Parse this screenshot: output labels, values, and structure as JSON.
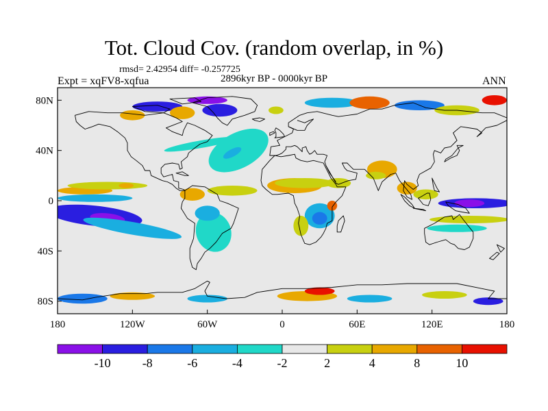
{
  "header": {
    "title": "Tot. Cloud Cov. (random overlap, in %)",
    "stats": "rmsd= 2.42954 diff= -0.257725",
    "expt": "Expt = xqFV8-xqfua",
    "period": "2896kyr BP - 0000kyr BP",
    "season": "ANN"
  },
  "map": {
    "projection": "cylindrical-equidistant",
    "lon_range": [
      -180,
      180
    ],
    "lat_range": [
      -90,
      90
    ],
    "x_ticks": [
      {
        "lon": -180,
        "label": "180"
      },
      {
        "lon": -120,
        "label": "120W"
      },
      {
        "lon": -60,
        "label": "60W"
      },
      {
        "lon": 0,
        "label": "0"
      },
      {
        "lon": 60,
        "label": "60E"
      },
      {
        "lon": 120,
        "label": "120E"
      },
      {
        "lon": 180,
        "label": "180"
      }
    ],
    "y_ticks": [
      {
        "lat": 80,
        "label": "80N"
      },
      {
        "lat": 40,
        "label": "40N"
      },
      {
        "lat": 0,
        "label": "0"
      },
      {
        "lat": -40,
        "label": "40S"
      },
      {
        "lat": -80,
        "label": "80S"
      }
    ],
    "background_color": "#e8e8e8",
    "coastline_color": "#000000"
  },
  "colorbar": {
    "labels": [
      "-10",
      "-8",
      "-6",
      "-4",
      "-2",
      "2",
      "4",
      "8",
      "10"
    ],
    "colors": [
      "#8a10e8",
      "#2a1ee0",
      "#1a78e8",
      "#1aaee0",
      "#20d8c8",
      "#e8e8e8",
      "#c8d010",
      "#e8a800",
      "#e86200",
      "#e81000"
    ]
  },
  "anomalies": [
    {
      "lon": -150,
      "lat": -12,
      "rx": 38,
      "ry": 8,
      "bin": 1,
      "rot": 6
    },
    {
      "lon": -140,
      "lat": -14,
      "rx": 14,
      "ry": 4,
      "bin": 0,
      "rot": 6
    },
    {
      "lon": -120,
      "lat": -22,
      "rx": 40,
      "ry": 5,
      "bin": 3,
      "rot": 10
    },
    {
      "lon": -150,
      "lat": 2,
      "rx": 30,
      "ry": 3,
      "bin": 3,
      "rot": 0
    },
    {
      "lon": -158,
      "lat": 8,
      "rx": 22,
      "ry": 3,
      "bin": 7,
      "rot": 0
    },
    {
      "lon": -140,
      "lat": 12,
      "rx": 32,
      "ry": 3,
      "bin": 6,
      "rot": 0
    },
    {
      "lon": -125,
      "lat": 12,
      "rx": 6,
      "ry": 2,
      "bin": 7,
      "rot": 0
    },
    {
      "lon": -55,
      "lat": -25,
      "rx": 14,
      "ry": 16,
      "bin": 4,
      "rot": -20
    },
    {
      "lon": -60,
      "lat": -10,
      "rx": 10,
      "ry": 6,
      "bin": 3,
      "rot": 0
    },
    {
      "lon": -72,
      "lat": 5,
      "rx": 10,
      "ry": 5,
      "bin": 7,
      "rot": 0
    },
    {
      "lon": -40,
      "lat": 8,
      "rx": 20,
      "ry": 4,
      "bin": 6,
      "rot": 0
    },
    {
      "lon": -65,
      "lat": 45,
      "rx": 30,
      "ry": 3,
      "bin": 4,
      "rot": -10
    },
    {
      "lon": -35,
      "lat": 40,
      "rx": 26,
      "ry": 14,
      "bin": 4,
      "rot": -28
    },
    {
      "lon": -40,
      "lat": 38,
      "rx": 8,
      "ry": 3,
      "bin": 3,
      "rot": -28
    },
    {
      "lon": 10,
      "lat": 12,
      "rx": 22,
      "ry": 6,
      "bin": 7,
      "rot": 0
    },
    {
      "lon": 18,
      "lat": 14,
      "rx": 24,
      "ry": 4,
      "bin": 6,
      "rot": 0
    },
    {
      "lon": 45,
      "lat": 14,
      "rx": 10,
      "ry": 4,
      "bin": 6,
      "rot": 0
    },
    {
      "lon": 30,
      "lat": -12,
      "rx": 12,
      "ry": 10,
      "bin": 3,
      "rot": 0
    },
    {
      "lon": 30,
      "lat": -14,
      "rx": 6,
      "ry": 5,
      "bin": 2,
      "rot": 0
    },
    {
      "lon": 15,
      "lat": -20,
      "rx": 6,
      "ry": 8,
      "bin": 6,
      "rot": 0
    },
    {
      "lon": 40,
      "lat": -4,
      "rx": 4,
      "ry": 4,
      "bin": 8,
      "rot": 0
    },
    {
      "lon": 80,
      "lat": 25,
      "rx": 12,
      "ry": 7,
      "bin": 7,
      "rot": 0
    },
    {
      "lon": 75,
      "lat": 20,
      "rx": 8,
      "ry": 3,
      "bin": 6,
      "rot": 0
    },
    {
      "lon": 100,
      "lat": 10,
      "rx": 8,
      "ry": 5,
      "bin": 7,
      "rot": 0
    },
    {
      "lon": 115,
      "lat": 5,
      "rx": 10,
      "ry": 4,
      "bin": 6,
      "rot": 0
    },
    {
      "lon": 155,
      "lat": -2,
      "rx": 30,
      "ry": 4,
      "bin": 1,
      "rot": 0
    },
    {
      "lon": 150,
      "lat": -2,
      "rx": 12,
      "ry": 3,
      "bin": 0,
      "rot": 0
    },
    {
      "lon": 150,
      "lat": -15,
      "rx": 32,
      "ry": 3,
      "bin": 6,
      "rot": 0
    },
    {
      "lon": 140,
      "lat": -22,
      "rx": 24,
      "ry": 3,
      "bin": 4,
      "rot": 0
    },
    {
      "lon": -100,
      "lat": 75,
      "rx": 20,
      "ry": 4,
      "bin": 1,
      "rot": 0
    },
    {
      "lon": -50,
      "lat": 72,
      "rx": 14,
      "ry": 5,
      "bin": 1,
      "rot": 0
    },
    {
      "lon": -60,
      "lat": 80,
      "rx": 16,
      "ry": 3,
      "bin": 0,
      "rot": 0
    },
    {
      "lon": -80,
      "lat": 70,
      "rx": 10,
      "ry": 5,
      "bin": 7,
      "rot": 0
    },
    {
      "lon": -120,
      "lat": 68,
      "rx": 10,
      "ry": 4,
      "bin": 7,
      "rot": 0
    },
    {
      "lon": -5,
      "lat": 72,
      "rx": 6,
      "ry": 3,
      "bin": 6,
      "rot": 0
    },
    {
      "lon": 40,
      "lat": 78,
      "rx": 22,
      "ry": 4,
      "bin": 3,
      "rot": 0
    },
    {
      "lon": 70,
      "lat": 78,
      "rx": 16,
      "ry": 5,
      "bin": 8,
      "rot": 0
    },
    {
      "lon": 110,
      "lat": 76,
      "rx": 20,
      "ry": 4,
      "bin": 2,
      "rot": 0
    },
    {
      "lon": 140,
      "lat": 72,
      "rx": 18,
      "ry": 4,
      "bin": 6,
      "rot": 0
    },
    {
      "lon": 170,
      "lat": 80,
      "rx": 10,
      "ry": 4,
      "bin": 9,
      "rot": 0
    },
    {
      "lon": -160,
      "lat": -78,
      "rx": 20,
      "ry": 4,
      "bin": 2,
      "rot": 0
    },
    {
      "lon": -120,
      "lat": -76,
      "rx": 18,
      "ry": 3,
      "bin": 7,
      "rot": 0
    },
    {
      "lon": -60,
      "lat": -78,
      "rx": 16,
      "ry": 3,
      "bin": 3,
      "rot": 0
    },
    {
      "lon": 20,
      "lat": -76,
      "rx": 24,
      "ry": 4,
      "bin": 7,
      "rot": 0
    },
    {
      "lon": 30,
      "lat": -72,
      "rx": 12,
      "ry": 3,
      "bin": 9,
      "rot": 0
    },
    {
      "lon": 70,
      "lat": -78,
      "rx": 18,
      "ry": 3,
      "bin": 3,
      "rot": 0
    },
    {
      "lon": 130,
      "lat": -75,
      "rx": 18,
      "ry": 3,
      "bin": 6,
      "rot": 0
    },
    {
      "lon": 165,
      "lat": -80,
      "rx": 12,
      "ry": 3,
      "bin": 1,
      "rot": 0
    }
  ]
}
